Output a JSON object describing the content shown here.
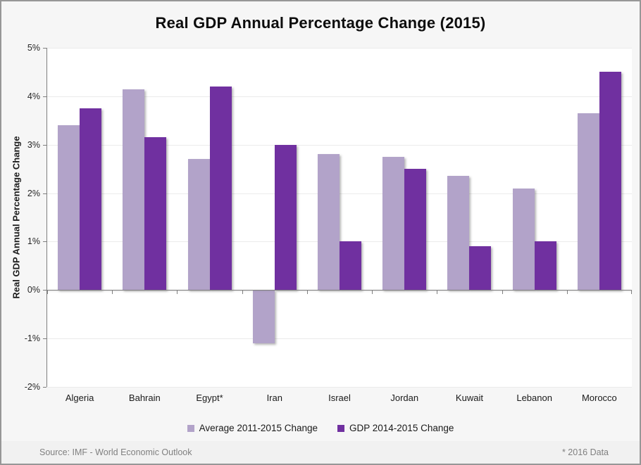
{
  "chart_data": {
    "type": "bar",
    "title": "Real GDP Annual Percentage Change (2015)",
    "ylabel": "Real GDP Annual Percentage Change",
    "xlabel": "",
    "ylim": [
      -2,
      5
    ],
    "yticks": [
      "5%",
      "4%",
      "3%",
      "2%",
      "1%",
      "0%",
      "-1%",
      "-2%"
    ],
    "grid": true,
    "legend_position": "bottom",
    "categories": [
      "Algeria",
      "Bahrain",
      "Egypt*",
      "Iran",
      "Israel",
      "Jordan",
      "Kuwait",
      "Lebanon",
      "Morocco"
    ],
    "series": [
      {
        "name": "Average 2011-2015 Change",
        "color": "#b2a3c9",
        "values": [
          3.4,
          4.15,
          2.7,
          -1.1,
          2.8,
          2.75,
          2.35,
          2.1,
          3.65
        ]
      },
      {
        "name": "GDP 2014-2015 Change",
        "color": "#7030a0",
        "values": [
          3.75,
          3.15,
          4.2,
          3.0,
          1.0,
          2.5,
          0.9,
          1.0,
          4.5
        ]
      }
    ]
  },
  "footer": {
    "source": "Source: IMF - World Economic Outlook",
    "note": "* 2016 Data"
  }
}
